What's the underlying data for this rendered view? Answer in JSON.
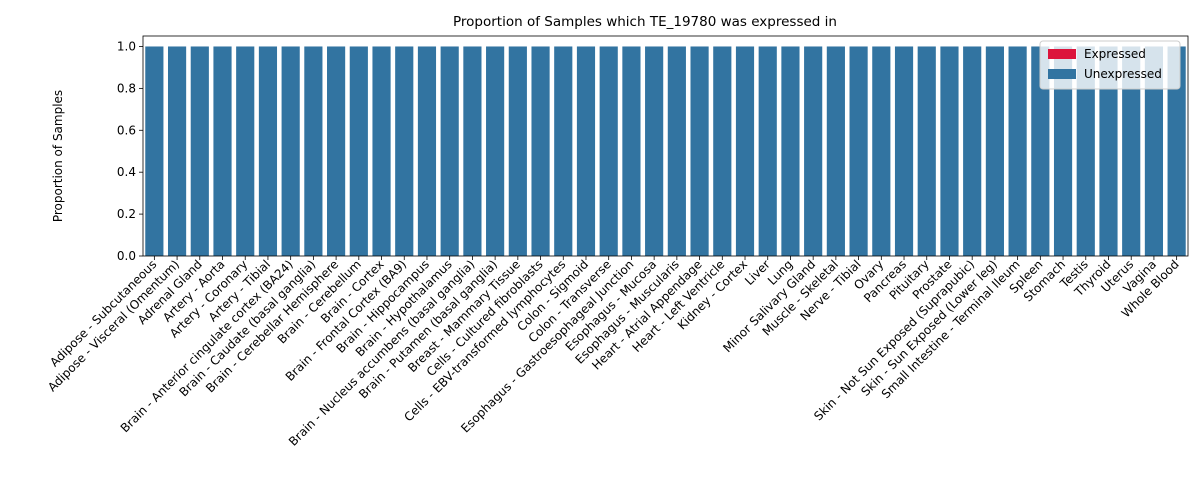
{
  "chart_data": {
    "type": "bar",
    "title": "Proportion of Samples which TE_19780 was expressed in",
    "xlabel": "",
    "ylabel": "Proportion of Samples",
    "ylim": [
      0,
      1.05
    ],
    "yticks": [
      "0.0",
      "0.2",
      "0.4",
      "0.6",
      "0.8",
      "1.0"
    ],
    "stacked": true,
    "legend_position": "top-right",
    "categories": [
      "Adipose - Subcutaneous",
      "Adipose - Visceral (Omentum)",
      "Adrenal Gland",
      "Artery - Aorta",
      "Artery - Coronary",
      "Artery - Tibial",
      "Brain - Anterior cingulate cortex (BA24)",
      "Brain - Caudate (basal ganglia)",
      "Brain - Cerebellar Hemisphere",
      "Brain - Cerebellum",
      "Brain - Cortex",
      "Brain - Frontal Cortex (BA9)",
      "Brain - Hippocampus",
      "Brain - Hypothalamus",
      "Brain - Nucleus accumbens (basal ganglia)",
      "Brain - Putamen (basal ganglia)",
      "Breast - Mammary Tissue",
      "Cells - Cultured fibroblasts",
      "Cells - EBV-transformed lymphocytes",
      "Colon - Sigmoid",
      "Colon - Transverse",
      "Esophagus - Gastroesophageal Junction",
      "Esophagus - Mucosa",
      "Esophagus - Muscularis",
      "Heart - Atrial Appendage",
      "Heart - Left Ventricle",
      "Kidney - Cortex",
      "Liver",
      "Lung",
      "Minor Salivary Gland",
      "Muscle - Skeletal",
      "Nerve - Tibial",
      "Ovary",
      "Pancreas",
      "Pituitary",
      "Prostate",
      "Skin - Not Sun Exposed (Suprapubic)",
      "Skin - Sun Exposed (Lower leg)",
      "Small Intestine - Terminal Ileum",
      "Spleen",
      "Stomach",
      "Testis",
      "Thyroid",
      "Uterus",
      "Vagina",
      "Whole Blood"
    ],
    "series": [
      {
        "name": "Expressed",
        "color": "#dc143c",
        "values": [
          0,
          0,
          0,
          0,
          0,
          0,
          0,
          0,
          0,
          0,
          0,
          0,
          0,
          0,
          0,
          0,
          0,
          0,
          0,
          0,
          0,
          0,
          0,
          0,
          0,
          0,
          0,
          0,
          0,
          0,
          0,
          0,
          0,
          0,
          0,
          0,
          0,
          0,
          0,
          0,
          0,
          0,
          0,
          0,
          0,
          0
        ]
      },
      {
        "name": "Unexpressed",
        "color": "#3274a1",
        "values": [
          1,
          1,
          1,
          1,
          1,
          1,
          1,
          1,
          1,
          1,
          1,
          1,
          1,
          1,
          1,
          1,
          1,
          1,
          1,
          1,
          1,
          1,
          1,
          1,
          1,
          1,
          1,
          1,
          1,
          1,
          1,
          1,
          1,
          1,
          1,
          1,
          1,
          1,
          1,
          1,
          1,
          1,
          1,
          1,
          1,
          1
        ]
      }
    ]
  }
}
